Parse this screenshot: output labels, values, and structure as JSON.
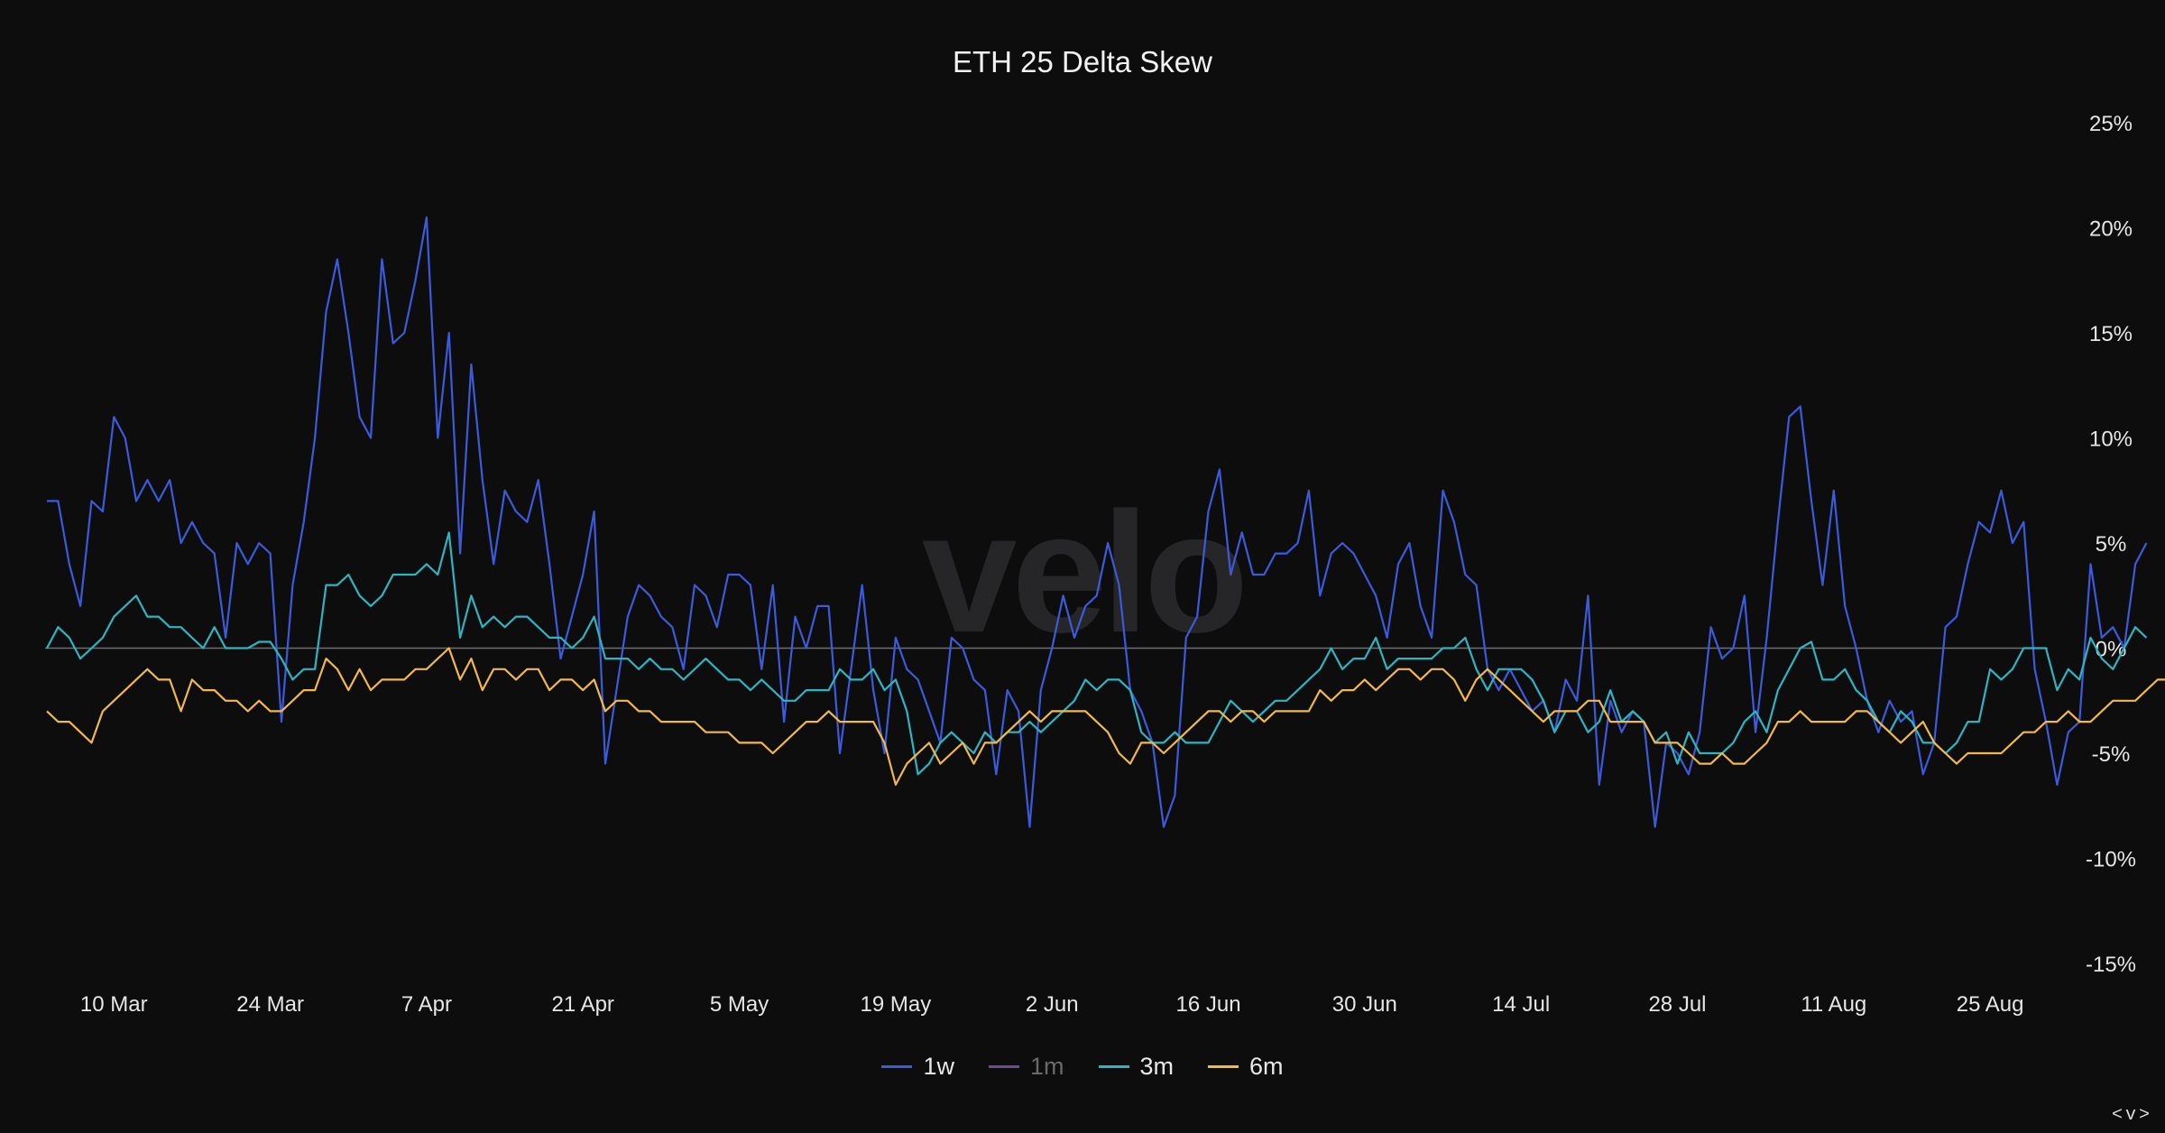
{
  "chart_data": {
    "type": "line",
    "title": "ETH 25 Delta Skew",
    "watermark": "velo",
    "x_start": "2025-03-04",
    "x_ticks": [
      "10 Mar",
      "24 Mar",
      "7 Apr",
      "21 Apr",
      "5 May",
      "19 May",
      "2 Jun",
      "16 Jun",
      "30 Jun",
      "14 Jul",
      "28 Jul",
      "11 Aug",
      "25 Aug"
    ],
    "y_ticks": [
      "25%",
      "20%",
      "15%",
      "10%",
      "5%",
      "0%",
      "-5%",
      "-10%",
      "-15%"
    ],
    "ylim": [
      -15,
      25
    ],
    "series": [
      {
        "name": "1w",
        "color": "#3b5bdb",
        "visible": true,
        "values": [
          7.0,
          7.0,
          4.0,
          2.0,
          7.0,
          6.5,
          11.0,
          10.0,
          7.0,
          8.0,
          7.0,
          8.0,
          5.0,
          6.0,
          5.0,
          4.5,
          0.5,
          5.0,
          4.0,
          5.0,
          4.5,
          -3.5,
          3.0,
          6.0,
          10.0,
          16.0,
          18.5,
          15.0,
          11.0,
          10.0,
          18.5,
          14.5,
          15.0,
          17.5,
          20.5,
          10.0,
          15.0,
          4.5,
          13.5,
          8.0,
          4.0,
          7.5,
          6.5,
          6.0,
          8.0,
          4.0,
          -0.5,
          1.5,
          3.5,
          6.5,
          -5.5,
          -2.0,
          1.5,
          3.0,
          2.5,
          1.5,
          1.0,
          -1.0,
          3.0,
          2.5,
          1.0,
          3.5,
          3.5,
          3.0,
          -1.0,
          3.0,
          -3.5,
          1.5,
          0.0,
          2.0,
          2.0,
          -5.0,
          -1.0,
          3.0,
          -2.0,
          -5.0,
          0.5,
          -1.0,
          -1.5,
          -3.0,
          -4.5,
          0.5,
          0.0,
          -1.5,
          -2.0,
          -6.0,
          -2.0,
          -3.0,
          -8.5,
          -2.0,
          0.0,
          2.5,
          0.5,
          2.0,
          2.5,
          5.0,
          3.0,
          -2.0,
          -3.0,
          -4.5,
          -8.5,
          -7.0,
          0.5,
          1.5,
          6.5,
          8.5,
          3.5,
          5.5,
          3.5,
          3.5,
          4.5,
          4.5,
          5.0,
          7.5,
          2.5,
          4.5,
          5.0,
          4.5,
          3.5,
          2.5,
          0.5,
          4.0,
          5.0,
          2.0,
          0.5,
          7.5,
          6.0,
          3.5,
          3.0,
          -1.0,
          -2.0,
          -1.0,
          -2.0,
          -3.0,
          -2.5,
          -4.0,
          -1.5,
          -2.5,
          2.5,
          -6.5,
          -2.5,
          -4.0,
          -3.0,
          -3.5,
          -8.5,
          -4.5,
          -5.0,
          -6.0,
          -4.0,
          1.0,
          -0.5,
          0.0,
          2.5,
          -4.0,
          0.5,
          6.0,
          11.0,
          11.5,
          7.0,
          3.0,
          7.5,
          2.0,
          0.0,
          -2.5,
          -4.0,
          -2.5,
          -3.5,
          -3.0,
          -6.0,
          -4.5,
          1.0,
          1.5,
          4.0,
          6.0,
          5.5,
          7.5,
          5.0,
          6.0,
          -1.0,
          -3.5,
          -6.5,
          -4.0,
          -3.5,
          4.0,
          0.5,
          1.0,
          0.0,
          4.0,
          5.0
        ]
      },
      {
        "name": "1m",
        "color": "#6b4a96",
        "visible": false,
        "values": []
      },
      {
        "name": "3m",
        "color": "#2fb4c2",
        "visible": true,
        "values": [
          0.0,
          1.0,
          0.5,
          -0.5,
          0.0,
          0.5,
          1.5,
          2.0,
          2.5,
          1.5,
          1.5,
          1.0,
          1.0,
          0.5,
          0.0,
          1.0,
          0.0,
          0.0,
          0.0,
          0.3,
          0.3,
          -0.5,
          -1.5,
          -1.0,
          -1.0,
          3.0,
          3.0,
          3.5,
          2.5,
          2.0,
          2.5,
          3.5,
          3.5,
          3.5,
          4.0,
          3.5,
          5.5,
          0.5,
          2.5,
          1.0,
          1.5,
          1.0,
          1.5,
          1.5,
          1.0,
          0.5,
          0.5,
          0.0,
          0.5,
          1.5,
          -0.5,
          -0.5,
          -0.5,
          -1.0,
          -0.5,
          -1.0,
          -1.0,
          -1.5,
          -1.0,
          -0.5,
          -1.0,
          -1.5,
          -1.5,
          -2.0,
          -1.5,
          -2.0,
          -2.5,
          -2.5,
          -2.0,
          -2.0,
          -2.0,
          -1.0,
          -1.5,
          -1.5,
          -1.0,
          -2.0,
          -1.5,
          -3.0,
          -6.0,
          -5.5,
          -4.5,
          -4.0,
          -4.5,
          -5.0,
          -4.0,
          -4.5,
          -4.0,
          -4.0,
          -3.5,
          -4.0,
          -3.5,
          -3.0,
          -2.5,
          -1.5,
          -2.0,
          -1.5,
          -1.5,
          -2.0,
          -4.0,
          -4.5,
          -4.5,
          -4.0,
          -4.5,
          -4.5,
          -4.5,
          -3.5,
          -2.5,
          -3.0,
          -3.5,
          -3.0,
          -2.5,
          -2.5,
          -2.0,
          -1.5,
          -1.0,
          0.0,
          -1.0,
          -0.5,
          -0.5,
          0.5,
          -1.0,
          -0.5,
          -0.5,
          -0.5,
          -0.5,
          0.0,
          0.0,
          0.5,
          -1.0,
          -2.0,
          -1.0,
          -1.0,
          -1.0,
          -1.5,
          -2.5,
          -4.0,
          -3.0,
          -3.0,
          -4.0,
          -3.5,
          -2.0,
          -3.5,
          -3.0,
          -3.5,
          -4.5,
          -4.0,
          -5.5,
          -4.0,
          -5.0,
          -5.0,
          -5.0,
          -4.5,
          -3.5,
          -3.0,
          -4.0,
          -2.0,
          -1.0,
          0.0,
          0.3,
          -1.5,
          -1.5,
          -1.0,
          -2.0,
          -2.5,
          -3.5,
          -4.0,
          -3.0,
          -3.5,
          -4.5,
          -4.5,
          -5.0,
          -4.5,
          -3.5,
          -3.5,
          -1.0,
          -1.5,
          -1.0,
          0.0,
          0.0,
          0.0,
          -2.0,
          -1.0,
          -1.5,
          0.5,
          -0.5,
          -1.0,
          0.0,
          1.0,
          0.5
        ]
      },
      {
        "name": "6m",
        "color": "#f2b84b",
        "visible": true,
        "values": [
          -3.0,
          -3.5,
          -3.5,
          -4.0,
          -4.5,
          -3.0,
          -2.5,
          -2.0,
          -1.5,
          -1.0,
          -1.5,
          -1.5,
          -3.0,
          -1.5,
          -2.0,
          -2.0,
          -2.5,
          -2.5,
          -3.0,
          -2.5,
          -3.0,
          -3.0,
          -2.5,
          -2.0,
          -2.0,
          -0.5,
          -1.0,
          -2.0,
          -1.0,
          -2.0,
          -1.5,
          -1.5,
          -1.5,
          -1.0,
          -1.0,
          -0.5,
          0.0,
          -1.5,
          -0.5,
          -2.0,
          -1.0,
          -1.0,
          -1.5,
          -1.0,
          -1.0,
          -2.0,
          -1.5,
          -1.5,
          -2.0,
          -1.5,
          -3.0,
          -2.5,
          -2.5,
          -3.0,
          -3.0,
          -3.5,
          -3.5,
          -3.5,
          -3.5,
          -4.0,
          -4.0,
          -4.0,
          -4.5,
          -4.5,
          -4.5,
          -5.0,
          -4.5,
          -4.0,
          -3.5,
          -3.5,
          -3.0,
          -3.5,
          -3.5,
          -3.5,
          -3.5,
          -4.5,
          -6.5,
          -5.5,
          -5.0,
          -4.5,
          -5.5,
          -5.0,
          -4.5,
          -5.5,
          -4.5,
          -4.5,
          -4.0,
          -3.5,
          -3.0,
          -3.5,
          -3.0,
          -3.0,
          -3.0,
          -3.0,
          -3.5,
          -4.0,
          -5.0,
          -5.5,
          -4.5,
          -4.5,
          -5.0,
          -4.5,
          -4.0,
          -3.5,
          -3.0,
          -3.0,
          -3.5,
          -3.0,
          -3.0,
          -3.5,
          -3.0,
          -3.0,
          -3.0,
          -3.0,
          -2.0,
          -2.5,
          -2.0,
          -2.0,
          -1.5,
          -2.0,
          -1.5,
          -1.0,
          -1.0,
          -1.5,
          -1.0,
          -1.0,
          -1.5,
          -2.5,
          -1.5,
          -1.0,
          -1.5,
          -2.0,
          -2.5,
          -3.0,
          -3.5,
          -3.0,
          -3.0,
          -3.0,
          -2.5,
          -2.5,
          -3.5,
          -3.5,
          -3.5,
          -3.5,
          -4.5,
          -4.5,
          -4.5,
          -5.0,
          -5.5,
          -5.5,
          -5.0,
          -5.5,
          -5.5,
          -5.0,
          -4.5,
          -3.5,
          -3.5,
          -3.0,
          -3.5,
          -3.5,
          -3.5,
          -3.5,
          -3.0,
          -3.0,
          -3.5,
          -4.0,
          -4.5,
          -4.0,
          -3.5,
          -4.5,
          -5.0,
          -5.5,
          -5.0,
          -5.0,
          -5.0,
          -5.0,
          -4.5,
          -4.0,
          -4.0,
          -3.5,
          -3.5,
          -3.0,
          -3.5,
          -3.5,
          -3.0,
          -2.5,
          -2.5,
          -2.5,
          -2.0,
          -1.5,
          -1.5
        ]
      }
    ]
  },
  "nav": "<v>"
}
